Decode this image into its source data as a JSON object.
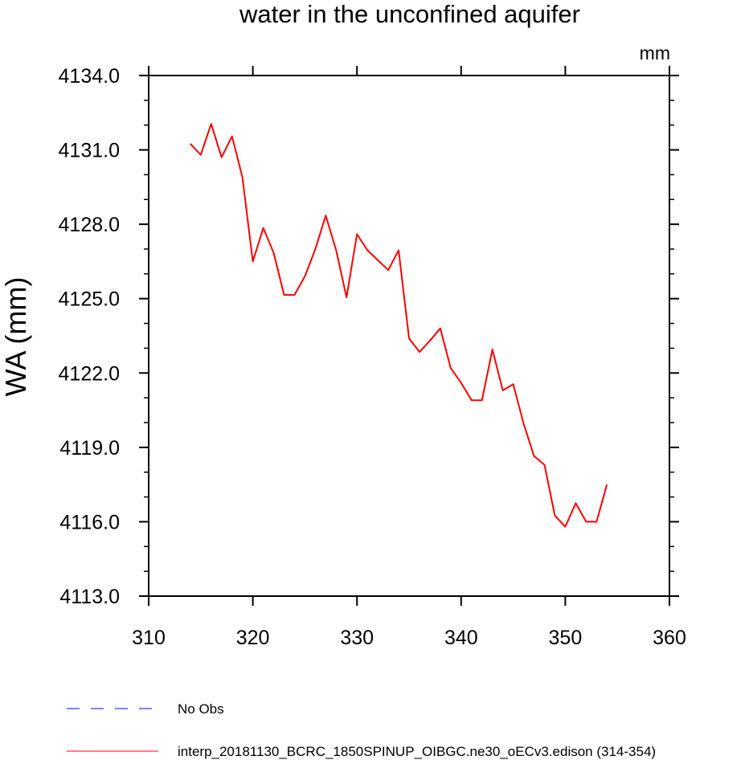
{
  "chart_data": {
    "type": "line",
    "title": "water in the unconfined aquifer",
    "units": "mm",
    "xlabel": "",
    "ylabel": "WA  (mm)",
    "xlim": [
      310,
      360
    ],
    "ylim": [
      4113,
      4134
    ],
    "x_ticks": [
      310,
      320,
      330,
      340,
      350,
      360
    ],
    "x_tick_labels": [
      "310",
      "320",
      "330",
      "340",
      "350",
      "360"
    ],
    "y_ticks": [
      4113,
      4116,
      4119,
      4122,
      4125,
      4128,
      4131,
      4134
    ],
    "y_tick_labels": [
      "4113.0",
      "4116.0",
      "4119.0",
      "4122.0",
      "4125.0",
      "4128.0",
      "4131.0",
      "4134.0"
    ],
    "series": [
      {
        "name": "interp_20181130_BCRC_1850SPINUP_OIBGC.ne30_oECv3.edison (314-354)",
        "color": "#ff0000",
        "dash": "solid",
        "x": [
          314,
          315,
          316,
          317,
          318,
          319,
          320,
          321,
          322,
          323,
          324,
          325,
          326,
          327,
          328,
          329,
          330,
          331,
          332,
          333,
          334,
          335,
          336,
          337,
          338,
          339,
          340,
          341,
          342,
          343,
          344,
          345,
          346,
          347,
          348,
          349,
          350,
          351,
          352,
          353,
          354
        ],
        "y": [
          4131.25,
          4130.8,
          4132.05,
          4130.7,
          4131.55,
          4129.9,
          4126.5,
          4127.85,
          4126.85,
          4125.15,
          4125.15,
          4125.9,
          4127.0,
          4128.35,
          4126.95,
          4125.05,
          4127.6,
          4126.95,
          4126.55,
          4126.15,
          4126.95,
          4123.4,
          4122.85,
          4123.3,
          4123.8,
          4122.2,
          4121.6,
          4120.9,
          4120.9,
          4122.95,
          4121.3,
          4121.55,
          4119.95,
          4118.65,
          4118.3,
          4116.25,
          4115.8,
          4116.75,
          4116.0,
          4116.0,
          4117.5
        ]
      },
      {
        "name": "No Obs",
        "color": "#0000ff",
        "dash": "dashed",
        "x": [],
        "y": []
      }
    ],
    "legend_position": "bottom-left"
  }
}
